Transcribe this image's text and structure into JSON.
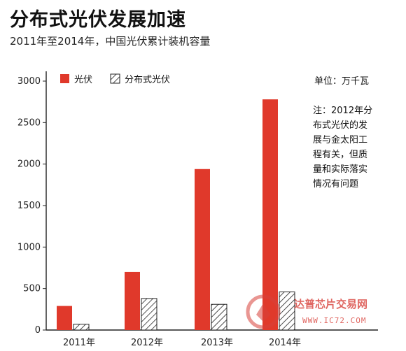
{
  "chart_data": {
    "type": "bar",
    "title": "分布式光伏发展加速",
    "subtitle": "2011年至2014年，中国光伏累计装机容量",
    "unit": "单位：万千瓦",
    "note_lines": [
      "注：2012年分",
      "布式光伏的发",
      "展与金太阳工",
      "程有关，但质",
      "量和实际落实",
      "情况有问题"
    ],
    "categories": [
      "2011年",
      "2012年",
      "2013年",
      "2014年"
    ],
    "series": [
      {
        "name": "光伏",
        "values": [
          290,
          700,
          1940,
          2780
        ],
        "color": "#e0392b",
        "pattern": "solid"
      },
      {
        "name": "分布式光伏",
        "values": [
          70,
          380,
          310,
          460
        ],
        "color": "#ffffff",
        "pattern": "hatch"
      }
    ],
    "ylim": [
      0,
      3000
    ],
    "yticks": [
      0,
      500,
      1000,
      1500,
      2000,
      2500,
      3000
    ],
    "legend_position": "top-left",
    "grid": false
  },
  "watermark": {
    "name": "达普芯片交易网",
    "url": "WWW.IC72.COM"
  }
}
